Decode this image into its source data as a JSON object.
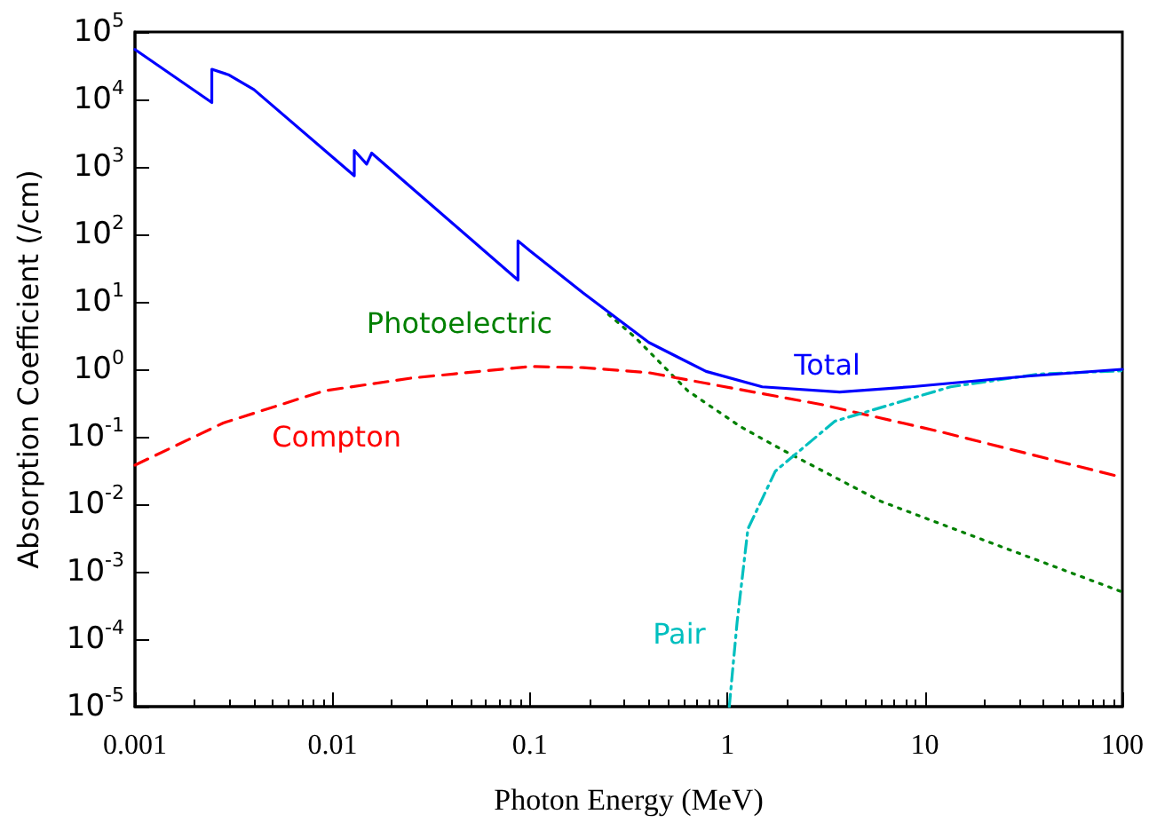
{
  "chart_data": {
    "type": "line",
    "xlabel": "Photon Energy (MeV)",
    "ylabel": "Absorption Coefficient (/cm)",
    "log": "xy",
    "grid": false,
    "legend": false,
    "marker": "none",
    "xlim": [
      0.001,
      100
    ],
    "xticks": [
      0.001,
      0.01,
      0.1,
      1,
      10,
      100
    ],
    "ylim": [
      1e-05,
      100000
    ],
    "yticks": [
      {
        "value": 1e-05,
        "label": "10$^{-5}$"
      },
      {
        "value": 0.0001,
        "label": "10$^{-4}$"
      },
      {
        "value": 0.001,
        "label": "10$^{-3}$"
      },
      {
        "value": 0.01,
        "label": "10$^{-2}$"
      },
      {
        "value": 0.1,
        "label": "10$^{-1}$"
      },
      {
        "value": 1,
        "label": "10$^{0}$"
      },
      {
        "value": 10,
        "label": "10$^{1}$"
      },
      {
        "value": 100,
        "label": "10$^{2}$"
      },
      {
        "value": 1000,
        "label": "10$^{3}$"
      },
      {
        "value": 10000,
        "label": "10$^{4}$"
      },
      {
        "value": 100000,
        "label": "10$^{5}$"
      }
    ],
    "series": [
      {
        "name": "Total",
        "color": "#0000ff",
        "line_style": "solid",
        "x": [
          0.001,
          0.00245,
          0.00245,
          0.003,
          0.004,
          0.0129,
          0.0129,
          0.0149,
          0.0158,
          0.087,
          0.087,
          0.1,
          0.186,
          0.4,
          0.78,
          1.5,
          3.7,
          8.5,
          33,
          100
        ],
        "values": [
          55000,
          9000,
          28000,
          23000,
          14000,
          740,
          1750,
          1100,
          1600,
          21,
          80,
          57,
          13.5,
          2.5,
          0.93,
          0.55,
          0.46,
          0.55,
          0.79,
          1.0
        ]
      },
      {
        "name": "Photoelectric",
        "color": "#008000",
        "line_style": "dotted",
        "x": [
          0.25,
          0.34,
          0.63,
          1.17,
          1.86,
          6,
          23,
          100
        ],
        "values": [
          6.5,
          3,
          0.48,
          0.14,
          0.066,
          0.011,
          0.0025,
          0.0005
        ]
      },
      {
        "name": "Compton",
        "color": "#ff0000",
        "line_style": "dashed",
        "x": [
          0.001,
          0.0028,
          0.0091,
          0.025,
          0.1,
          0.186,
          0.4,
          0.78,
          3,
          11.8,
          100
        ],
        "values": [
          0.038,
          0.16,
          0.48,
          0.74,
          1.1,
          1.06,
          0.89,
          0.62,
          0.3,
          0.12,
          0.025
        ]
      },
      {
        "name": "Pair",
        "color": "#00bfbf",
        "line_style": "dashdot",
        "x": [
          1.022,
          1.12,
          1.27,
          1.75,
          3.5,
          13.5,
          38,
          100
        ],
        "values": [
          1e-05,
          0.00018,
          0.0043,
          0.031,
          0.17,
          0.55,
          0.85,
          0.95
        ]
      }
    ]
  }
}
